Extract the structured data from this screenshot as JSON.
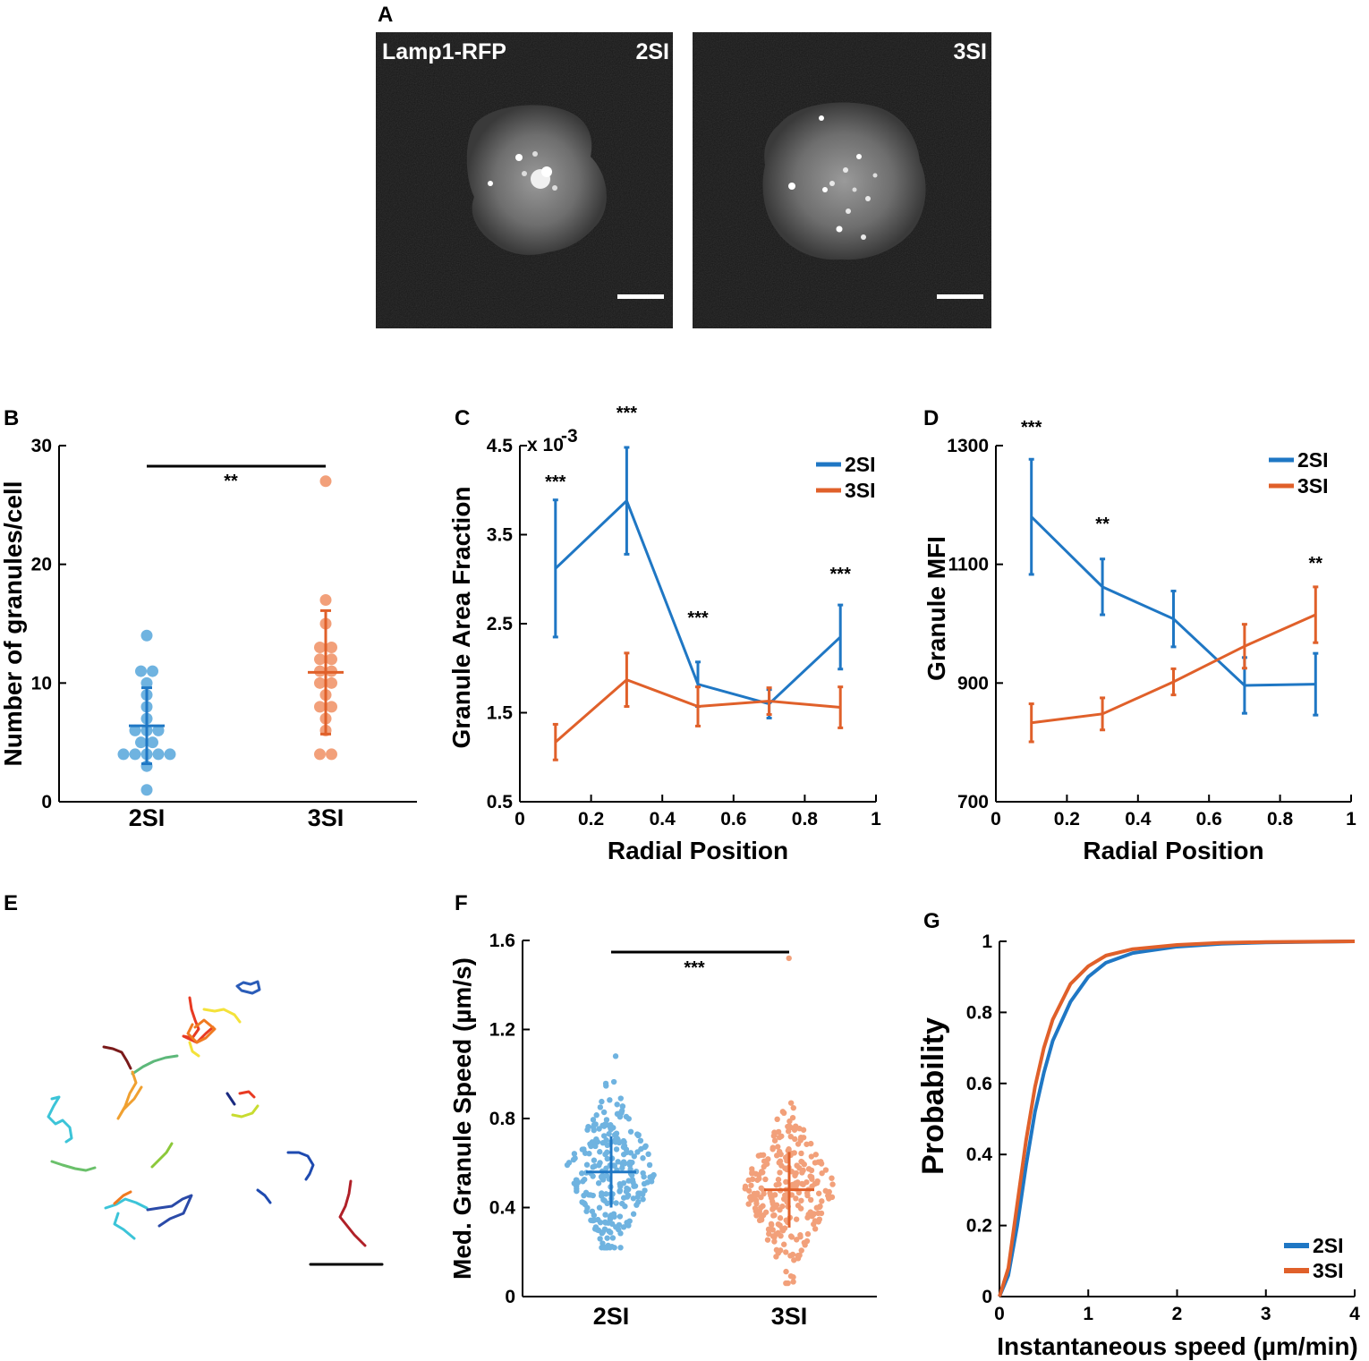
{
  "colors": {
    "blue": "#1f77c4",
    "orange": "#e0602a",
    "light_blue": "#6fb3e0",
    "light_orange": "#f2a07a",
    "micrograph_bg": "#161616"
  },
  "panels": {
    "A": {
      "letter": "A",
      "label": "Lamp1-RFP",
      "left_title": "2SI",
      "right_title": "3SI"
    },
    "B": {
      "letter": "B"
    },
    "C": {
      "letter": "C"
    },
    "D": {
      "letter": "D"
    },
    "E": {
      "letter": "E"
    },
    "F": {
      "letter": "F"
    },
    "G": {
      "letter": "G"
    }
  },
  "chart_data": [
    {
      "id": "B",
      "type": "scatter",
      "ylabel": "Number of granules/cell",
      "categories": [
        "2SI",
        "3SI"
      ],
      "ylim": [
        0,
        30
      ],
      "yticks": [
        0,
        10,
        20,
        30
      ],
      "significance": {
        "label": "**",
        "between": [
          "2SI",
          "3SI"
        ]
      },
      "series": [
        {
          "name": "2SI",
          "points": [
            1,
            3,
            4,
            4,
            4,
            4,
            4,
            5,
            5,
            6,
            6,
            6,
            7,
            8,
            9,
            10,
            11,
            11,
            14
          ],
          "mean": 6.4,
          "sd": 3.2
        },
        {
          "name": "3SI",
          "points": [
            4,
            4,
            6,
            7,
            8,
            8,
            9,
            10,
            10,
            11,
            11,
            12,
            12,
            13,
            13,
            15,
            17,
            27
          ],
          "mean": 10.9,
          "sd": 5.2
        }
      ]
    },
    {
      "id": "C",
      "type": "line",
      "xlabel": "Radial Position",
      "ylabel": "Granule Area Fraction",
      "multiplier": "x 10",
      "multiplier_exp": "-3",
      "xlim": [
        0,
        1
      ],
      "xticks": [
        "0",
        "0.2",
        "0.4",
        "0.6",
        "0.8",
        "1"
      ],
      "ylim": [
        0.5,
        4.5
      ],
      "yticks": [
        "0.5",
        "1.5",
        "2.5",
        "3.5",
        "4.5"
      ],
      "x": [
        0.1,
        0.3,
        0.5,
        0.7,
        0.9
      ],
      "series": [
        {
          "name": "2SI",
          "values": [
            3.12,
            3.88,
            1.82,
            1.6,
            2.35
          ],
          "err": [
            0.77,
            0.6,
            0.25,
            0.16,
            0.36
          ]
        },
        {
          "name": "3SI",
          "values": [
            1.17,
            1.87,
            1.57,
            1.63,
            1.56
          ],
          "err": [
            0.2,
            0.3,
            0.22,
            0.15,
            0.23
          ]
        }
      ],
      "annotations": [
        {
          "x": 0.1,
          "label": "***"
        },
        {
          "x": 0.3,
          "label": "***"
        },
        {
          "x": 0.5,
          "label": "***"
        },
        {
          "x": 0.9,
          "label": "***"
        }
      ]
    },
    {
      "id": "D",
      "type": "line",
      "xlabel": "Radial Position",
      "ylabel": "Granule MFI",
      "xlim": [
        0,
        1
      ],
      "xticks": [
        "0",
        "0.2",
        "0.4",
        "0.6",
        "0.8",
        "1"
      ],
      "ylim": [
        700,
        1300
      ],
      "yticks": [
        "700",
        "900",
        "1100",
        "1300"
      ],
      "x": [
        0.1,
        0.3,
        0.5,
        0.7,
        0.9
      ],
      "series": [
        {
          "name": "2SI",
          "values": [
            1180,
            1062,
            1008,
            896,
            898
          ],
          "err": [
            97,
            47,
            47,
            47,
            52
          ]
        },
        {
          "name": "3SI",
          "values": [
            833,
            848,
            902,
            962,
            1015
          ],
          "err": [
            32,
            27,
            22,
            37,
            47
          ]
        }
      ],
      "annotations": [
        {
          "x": 0.1,
          "label": "***"
        },
        {
          "x": 0.3,
          "label": "**"
        },
        {
          "x": 0.9,
          "label": "**"
        }
      ]
    },
    {
      "id": "F",
      "type": "scatter",
      "ylabel": "Med. Granule Speed (µm/s)",
      "categories": [
        "2SI",
        "3SI"
      ],
      "ylim": [
        0,
        1.6
      ],
      "yticks": [
        "0",
        "0.4",
        "0.8",
        "1.2",
        "1.6"
      ],
      "significance": {
        "label": "***",
        "between": [
          "2SI",
          "3SI"
        ]
      },
      "series": [
        {
          "name": "2SI",
          "n": 260,
          "median": 0.56,
          "spread": 0.16,
          "min": 0.22,
          "max": 1.08
        },
        {
          "name": "3SI",
          "n": 260,
          "median": 0.48,
          "spread": 0.17,
          "min": 0.06,
          "max": 1.52
        }
      ]
    },
    {
      "id": "G",
      "type": "line",
      "xlabel": "Instantaneous speed (µm/min)",
      "ylabel": "Probability",
      "xlim": [
        0,
        4
      ],
      "xticks": [
        "0",
        "1",
        "2",
        "3",
        "4"
      ],
      "ylim": [
        0,
        1
      ],
      "yticks": [
        "0",
        "0.2",
        "0.4",
        "0.6",
        "0.8",
        "1"
      ],
      "series": [
        {
          "name": "2SI",
          "x": [
            0,
            0.1,
            0.2,
            0.3,
            0.4,
            0.5,
            0.6,
            0.8,
            1.0,
            1.2,
            1.5,
            2.0,
            2.5,
            3.0,
            4.0
          ],
          "values": [
            0,
            0.06,
            0.2,
            0.37,
            0.52,
            0.63,
            0.72,
            0.83,
            0.9,
            0.94,
            0.967,
            0.985,
            0.993,
            0.997,
            1.0
          ]
        },
        {
          "name": "3SI",
          "x": [
            0,
            0.1,
            0.2,
            0.3,
            0.4,
            0.5,
            0.6,
            0.8,
            1.0,
            1.2,
            1.5,
            2.0,
            2.5,
            3.0,
            4.0
          ],
          "values": [
            0,
            0.08,
            0.26,
            0.44,
            0.59,
            0.7,
            0.78,
            0.88,
            0.93,
            0.96,
            0.978,
            0.99,
            0.996,
            0.998,
            1.0
          ]
        }
      ]
    }
  ]
}
